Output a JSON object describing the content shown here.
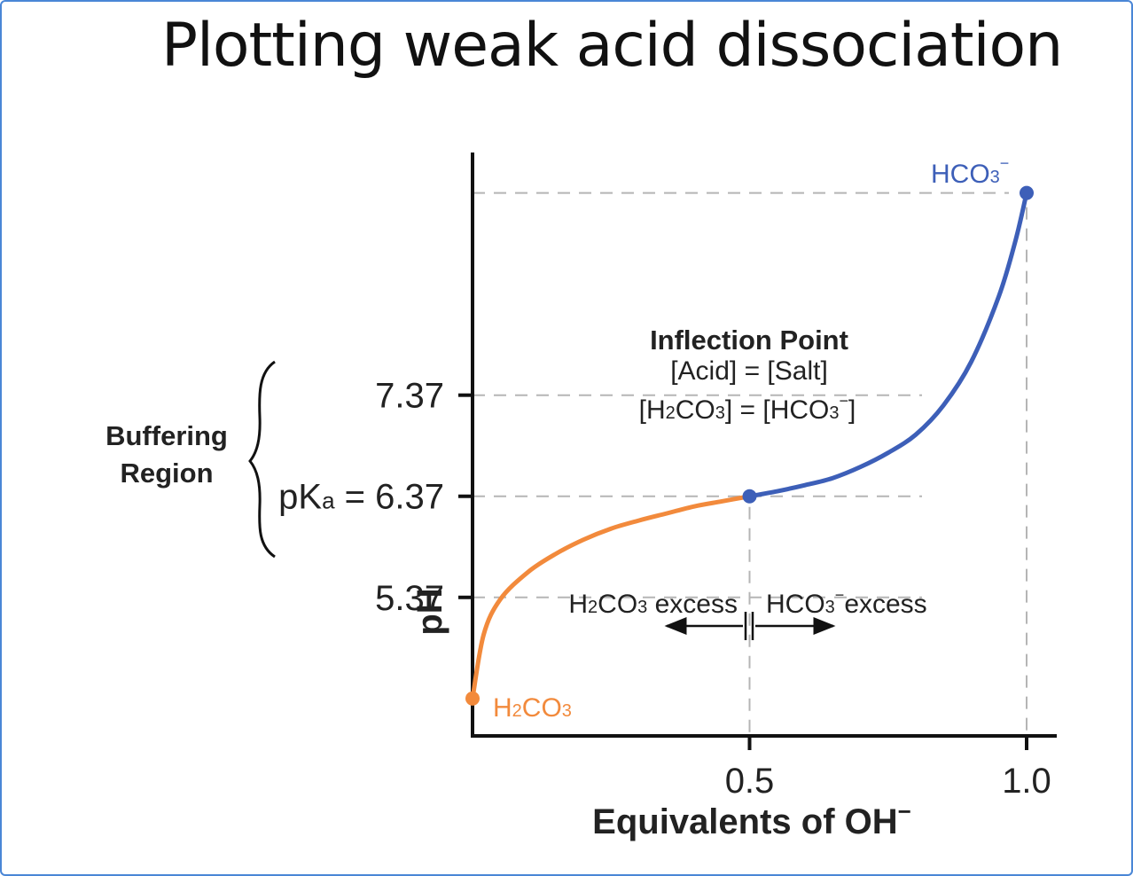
{
  "title": "Plotting weak acid dissociation",
  "colors": {
    "acid_curve": "#f28a3c",
    "base_curve": "#3d5fb8",
    "axis": "#111111",
    "guide": "#b5b5b5",
    "frame": "#4a86d6"
  },
  "chart_data": {
    "type": "line",
    "xlabel": "Equivalents of OH",
    "xlabel_superscript": "−",
    "ylabel": "pH",
    "xlim": [
      0,
      1.0
    ],
    "ylim": [
      4.0,
      9.77
    ],
    "x_ticks": [
      {
        "value": 0.5,
        "label": "0.5"
      },
      {
        "value": 1.0,
        "label": "1.0"
      }
    ],
    "y_ticks": [
      {
        "value": 7.37,
        "label": "7.37"
      },
      {
        "value": 6.37,
        "label": "pKa = 6.37",
        "prefix": "pK",
        "sub": "a",
        "suffix": " = 6.37"
      },
      {
        "value": 5.37,
        "label": "5.37"
      }
    ],
    "series": [
      {
        "name": "H2CO3",
        "color": "#f28a3c",
        "points": [
          [
            0.0,
            4.37
          ],
          [
            0.02,
            5.0
          ],
          [
            0.05,
            5.35
          ],
          [
            0.1,
            5.62
          ],
          [
            0.15,
            5.8
          ],
          [
            0.2,
            5.94
          ],
          [
            0.25,
            6.05
          ],
          [
            0.3,
            6.13
          ],
          [
            0.35,
            6.2
          ],
          [
            0.4,
            6.27
          ],
          [
            0.45,
            6.32
          ],
          [
            0.5,
            6.37
          ]
        ]
      },
      {
        "name": "HCO3-",
        "color": "#3d5fb8",
        "points": [
          [
            0.5,
            6.37
          ],
          [
            0.55,
            6.42
          ],
          [
            0.6,
            6.48
          ],
          [
            0.65,
            6.55
          ],
          [
            0.7,
            6.66
          ],
          [
            0.75,
            6.8
          ],
          [
            0.8,
            6.98
          ],
          [
            0.85,
            7.27
          ],
          [
            0.9,
            7.7
          ],
          [
            0.95,
            8.35
          ],
          [
            0.98,
            8.9
          ],
          [
            1.0,
            9.37
          ]
        ]
      }
    ],
    "points": [
      {
        "x": 0.0,
        "y": 4.37,
        "label": "H2CO3",
        "color": "#f28a3c"
      },
      {
        "x": 0.5,
        "y": 6.37,
        "label": "Inflection Point",
        "color": "#3d5fb8"
      },
      {
        "x": 1.0,
        "y": 9.37,
        "label": "HCO3-",
        "color": "#3d5fb8"
      }
    ],
    "annotations": {
      "endpoint_start": {
        "main": "H",
        "sub1": "2",
        "mid": "CO",
        "sub2": "3"
      },
      "endpoint_end": {
        "main": "HCO",
        "sub": "3",
        "sup": "−"
      },
      "inflection_title": "Inflection Point",
      "inflection_line1": "[Acid] = [Salt]",
      "inflection_line2": {
        "a": "[H",
        "s1": "2",
        "b": "CO",
        "s2": "3",
        "c": "] = [HCO",
        "s3": "3",
        "sup": "−",
        "d": "]"
      },
      "acid_excess": {
        "a": "H",
        "s1": "2",
        "b": "CO",
        "s2": "3",
        "c": " excess"
      },
      "base_excess": {
        "a": "HCO",
        "s": "3",
        "sup": "−",
        "c": "excess"
      },
      "buffering_line1": "Buffering",
      "buffering_line2": "Region"
    },
    "grid": false,
    "legend": "none"
  }
}
